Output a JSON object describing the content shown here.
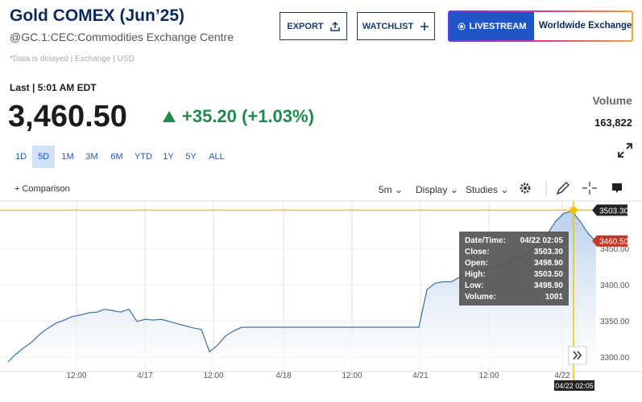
{
  "header": {
    "title": "Gold COMEX (Jun’25)",
    "subtitle": "@GC.1:CEC:Commodities Exchange Centre",
    "note": "*Data is delayed | Exchange | USD",
    "buttons": {
      "export": "EXPORT",
      "watchlist": "WATCHLIST",
      "livestream": "LIVESTREAM",
      "exchange": "Worldwide Exchange"
    }
  },
  "quote": {
    "last_label": "Last | 5:01 AM EDT",
    "price": "3,460.50",
    "change": "+35.20 (+1.03%)",
    "volume_label": "Volume",
    "volume": "163,822"
  },
  "ranges": [
    "1D",
    "5D",
    "1M",
    "3M",
    "6M",
    "YTD",
    "1Y",
    "5Y",
    "ALL"
  ],
  "selected_range": "5D",
  "toolbar": {
    "comparison": "Comparison",
    "interval": "5m",
    "display": "Display",
    "studies": "Studies"
  },
  "chart_data": {
    "type": "area",
    "color": "#3a70a8",
    "values": [
      3293,
      3304,
      3313,
      3321,
      3332,
      3340,
      3347,
      3351,
      3356,
      3358,
      3361,
      3362,
      3366,
      3364,
      3362,
      3366,
      3349,
      3352,
      3351,
      3352,
      3349,
      3346,
      3343,
      3340,
      3338,
      3307,
      3316,
      3329,
      3336,
      3341,
      3341,
      3341,
      3341,
      3341,
      3341,
      3341,
      3341,
      3341,
      3341,
      3341,
      3341,
      3341,
      3341,
      3341,
      3341,
      3341,
      3341,
      3341,
      3341,
      3341,
      3341,
      3341,
      3393,
      3402,
      3404,
      3404,
      3410,
      3416,
      3418,
      3421,
      3423,
      3427,
      3432,
      3438,
      3440,
      3447,
      3460,
      3471,
      3488,
      3499,
      3502,
      3488,
      3471,
      3460
    ],
    "xlim": [
      0,
      73
    ],
    "xticks": [
      {
        "value": 8.5,
        "label": "12:00"
      },
      {
        "value": 17,
        "label": "4/17"
      },
      {
        "value": 25.5,
        "label": "12:00"
      },
      {
        "value": 34.2,
        "label": "4/18"
      },
      {
        "value": 42.7,
        "label": "12:00"
      },
      {
        "value": 51.2,
        "label": "4/21"
      },
      {
        "value": 59.7,
        "label": "12:00"
      },
      {
        "value": 68.8,
        "label": "4/22"
      }
    ],
    "ylim": [
      3282,
      3507
    ],
    "yticks": [
      {
        "value": 3300,
        "label": "3300.00"
      },
      {
        "value": 3350,
        "label": "3350.00"
      },
      {
        "value": 3400,
        "label": "3400.00"
      },
      {
        "value": 3450,
        "label": "3450.00"
      }
    ],
    "grid": true,
    "crosshair": {
      "value": 3503.3,
      "label": "3503.30",
      "time": "04/22 02:05"
    },
    "last_price": {
      "value": 3460.5,
      "label": "3460.50"
    }
  },
  "tooltip": {
    "rows": [
      [
        "Date/Time:",
        "04/22 02:05"
      ],
      [
        "Close:",
        "3503.30"
      ],
      [
        "Open:",
        "3498.90"
      ],
      [
        "High:",
        "3503.50"
      ],
      [
        "Low:",
        "3498.90"
      ],
      [
        "Volume:",
        "1001"
      ]
    ]
  }
}
